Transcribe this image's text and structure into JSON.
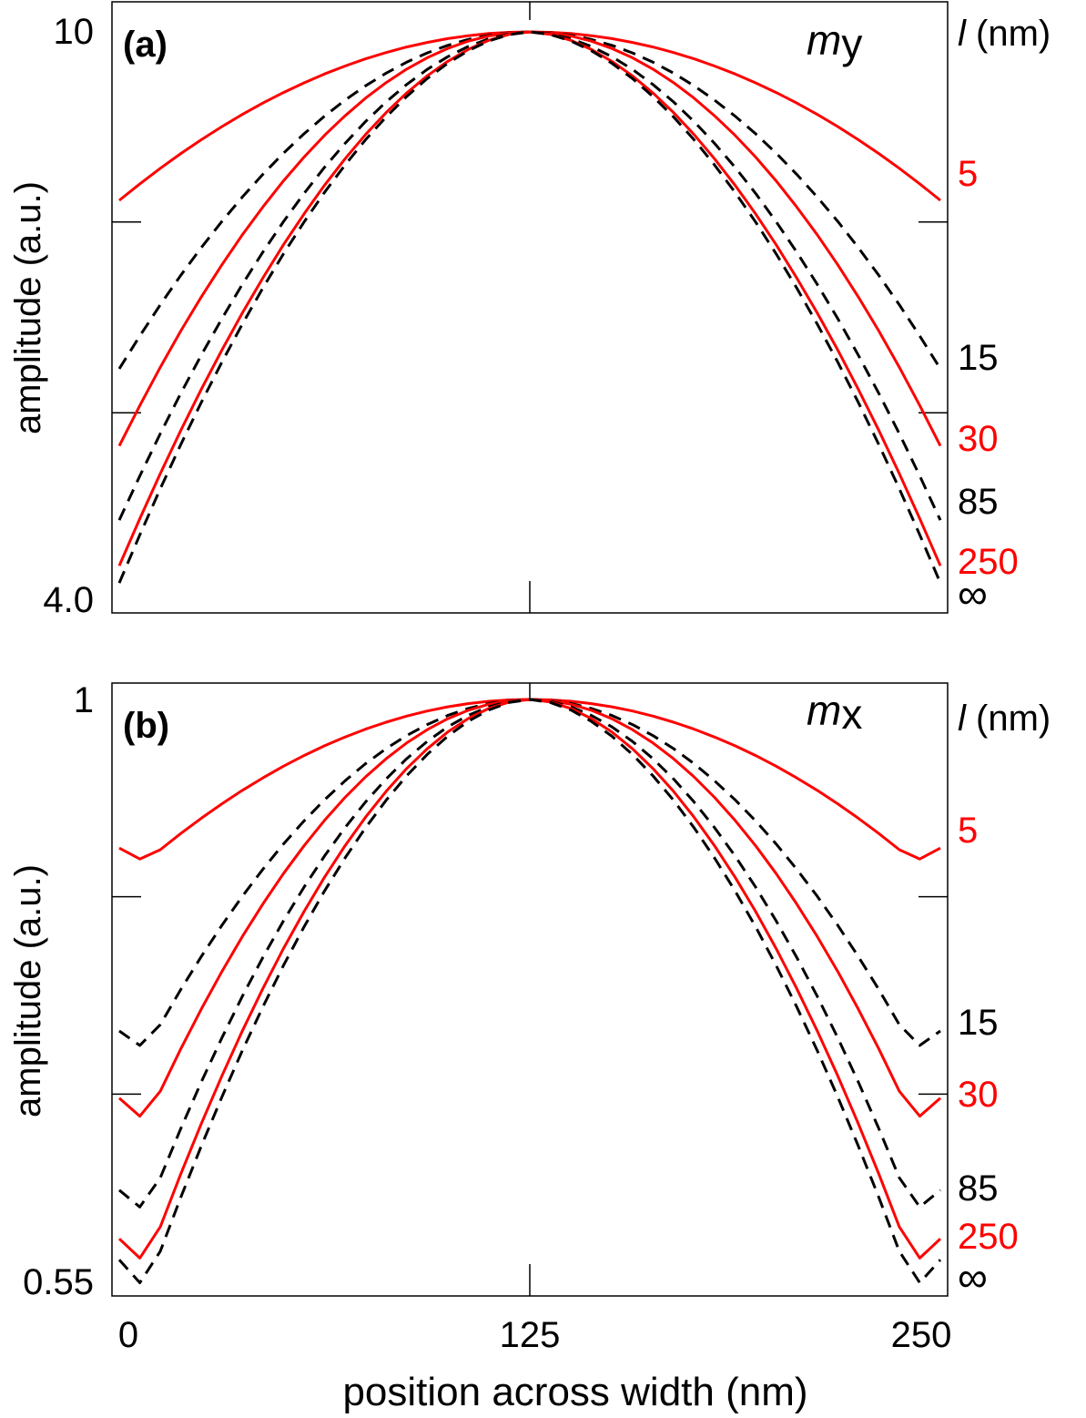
{
  "figure": {
    "xlabel": "position across width (nm)",
    "x_ticks": [
      "0",
      "125",
      "250"
    ],
    "colors": {
      "red": "#ff0000",
      "black": "#000000"
    }
  },
  "chart_data": [
    {
      "type": "line",
      "panel_label": "(a)",
      "component": {
        "base": "m",
        "sub": "y"
      },
      "ylabel": "amplitude (a.u.)",
      "y_tick_labels": [
        "10",
        "4.0"
      ],
      "legend_header": {
        "l": "l",
        "unit": " (nm)"
      },
      "xlim": [
        0,
        250
      ],
      "ylim": [
        0,
        1
      ],
      "x_minor_ticks": [
        125
      ],
      "y_minor_ticks": [
        0.333,
        0.667
      ],
      "series": [
        {
          "name": "5",
          "label": "5",
          "color": "#ff0000",
          "dashed": false,
          "edge": 0.705,
          "p": 2.0,
          "center_offset": 0
        },
        {
          "name": "15",
          "label": "15",
          "color": "#000000",
          "dashed": true,
          "edge": 0.41,
          "p": 2.0,
          "center_offset": 0
        },
        {
          "name": "30",
          "label": "30",
          "color": "#ff0000",
          "dashed": false,
          "edge": 0.275,
          "p": 2.0,
          "center_offset": 0
        },
        {
          "name": "85",
          "label": "85",
          "color": "#000000",
          "dashed": true,
          "edge": 0.145,
          "p": 1.85,
          "center_offset": 0
        },
        {
          "name": "250",
          "label": "250",
          "color": "#ff0000",
          "dashed": false,
          "edge": 0.065,
          "p": 1.8,
          "center_offset": 0
        },
        {
          "name": "inf",
          "label": "∞",
          "color": "#000000",
          "dashed": true,
          "edge": 0.035,
          "p": 1.78,
          "center_offset": 0
        }
      ]
    },
    {
      "type": "line",
      "panel_label": "(b)",
      "component": {
        "base": "m",
        "sub": "x"
      },
      "ylabel": "amplitude (a.u.)",
      "y_tick_labels": [
        "1",
        "0.55"
      ],
      "legend_header": {
        "l": "l",
        "unit": " (nm)"
      },
      "xlim": [
        0,
        250
      ],
      "ylim": [
        0.55,
        1
      ],
      "x_minor_ticks": [
        125
      ],
      "y_minor_ticks": [
        0.7,
        0.85
      ],
      "series": [
        {
          "name": "5",
          "label": "5",
          "color": "#ff0000",
          "dashed": false,
          "edge": 0.887,
          "min": 0.878,
          "p": 2.0
        },
        {
          "name": "15",
          "label": "15",
          "color": "#000000",
          "dashed": true,
          "edge": 0.748,
          "min": 0.736,
          "p": 2.0
        },
        {
          "name": "30",
          "label": "30",
          "color": "#ff0000",
          "dashed": false,
          "edge": 0.697,
          "min": 0.682,
          "p": 2.0
        },
        {
          "name": "85",
          "label": "85",
          "color": "#000000",
          "dashed": true,
          "edge": 0.627,
          "min": 0.613,
          "p": 1.9
        },
        {
          "name": "250",
          "label": "250",
          "color": "#ff0000",
          "dashed": false,
          "edge": 0.59,
          "min": 0.574,
          "p": 1.85
        },
        {
          "name": "inf",
          "label": "∞",
          "color": "#000000",
          "dashed": true,
          "edge": 0.574,
          "min": 0.555,
          "p": 1.8
        }
      ]
    }
  ]
}
